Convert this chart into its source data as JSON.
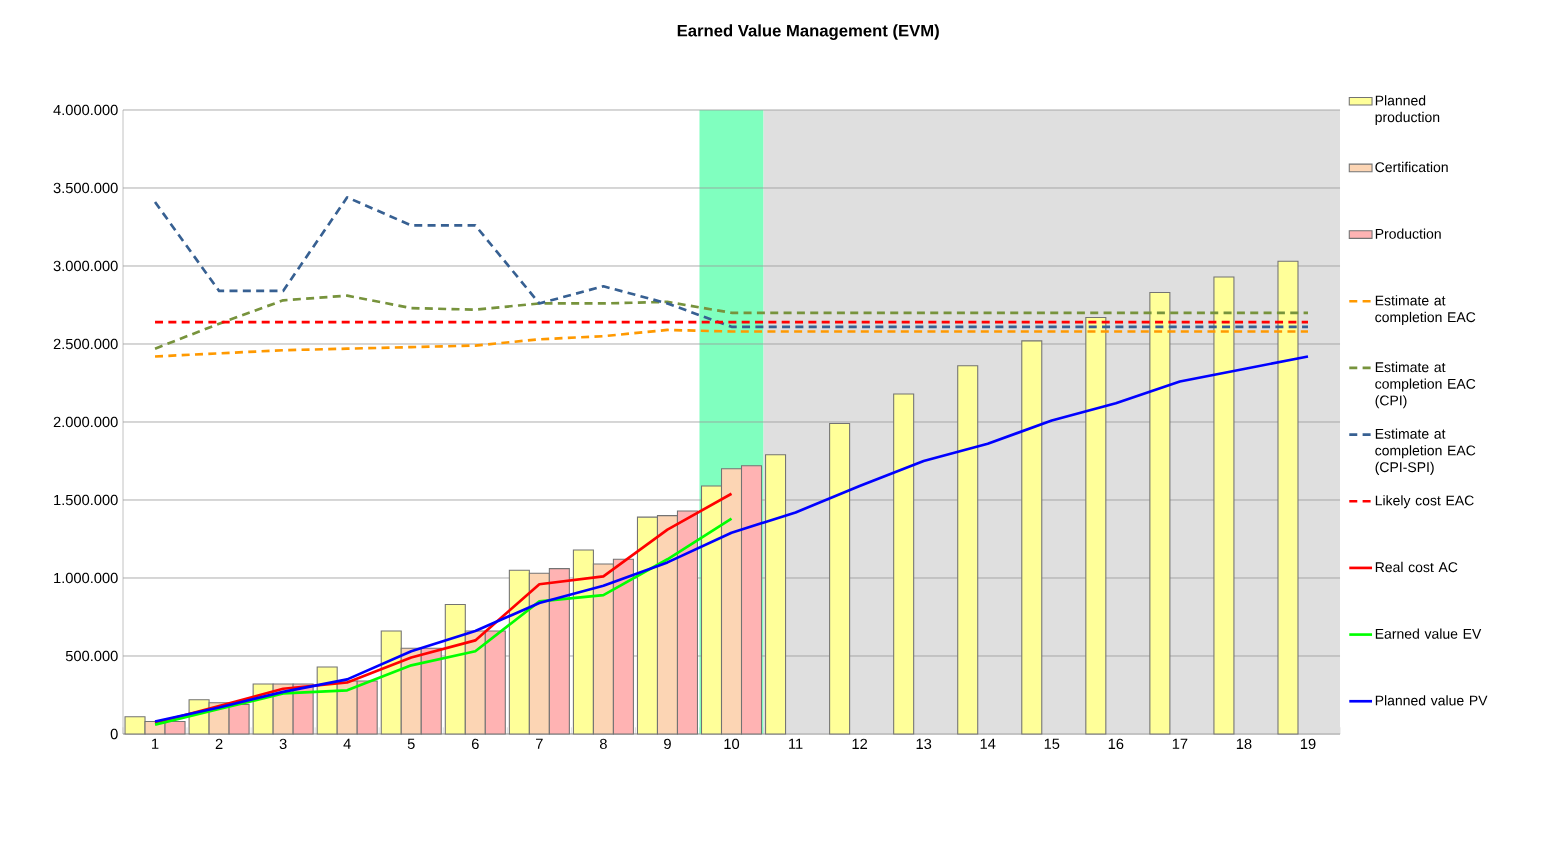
{
  "chart_data": {
    "type": "bar",
    "title": "Earned Value Management (EVM)",
    "categories": [
      "1",
      "2",
      "3",
      "4",
      "5",
      "6",
      "7",
      "8",
      "9",
      "10",
      "11",
      "12",
      "13",
      "14",
      "15",
      "16",
      "17",
      "18",
      "19"
    ],
    "series": [
      {
        "name": "Planned production",
        "color": "#ffff99",
        "values": [
          110000,
          220000,
          320000,
          430000,
          660000,
          830000,
          1050000,
          1180000,
          1390000,
          1590000,
          1790000,
          1990000,
          2180000,
          2360000,
          2520000,
          2670000,
          2830000,
          2930000,
          3030000
        ]
      },
      {
        "name": "Certification",
        "color": "#fcd5b4",
        "values": [
          80000,
          200000,
          320000,
          340000,
          550000,
          660000,
          1030000,
          1090000,
          1400000,
          1700000,
          null,
          null,
          null,
          null,
          null,
          null,
          null,
          null,
          null
        ]
      },
      {
        "name": "Production",
        "color": "#ffb3b3",
        "values": [
          80000,
          190000,
          320000,
          340000,
          550000,
          660000,
          1060000,
          1120000,
          1430000,
          1720000,
          null,
          null,
          null,
          null,
          null,
          null,
          null,
          null,
          null
        ]
      },
      {
        "type": "line",
        "name": "Estimate at completion EAC",
        "color": "#ff9900",
        "line_style": "dashed",
        "values": [
          2420000,
          2440000,
          2460000,
          2470000,
          2480000,
          2490000,
          2530000,
          2550000,
          2590000,
          2580000,
          2580000,
          2580000,
          2580000,
          2580000,
          2580000,
          2580000,
          2580000,
          2580000,
          2580000
        ]
      },
      {
        "type": "line",
        "name": "Estimate at completion EAC (CPI)",
        "color": "#77933c",
        "line_style": "dashed",
        "values": [
          2470000,
          2630000,
          2780000,
          2810000,
          2730000,
          2720000,
          2760000,
          2760000,
          2770000,
          2700000,
          2700000,
          2700000,
          2700000,
          2700000,
          2700000,
          2700000,
          2700000,
          2700000,
          2700000
        ]
      },
      {
        "type": "line",
        "name": "Estimate at completion EAC (CPI-SPI)",
        "color": "#376092",
        "line_style": "dashed",
        "values": [
          3410000,
          2840000,
          2840000,
          3440000,
          3260000,
          3260000,
          2760000,
          2870000,
          2760000,
          2610000,
          2610000,
          2610000,
          2610000,
          2610000,
          2610000,
          2610000,
          2610000,
          2610000,
          2610000
        ]
      },
      {
        "type": "line",
        "name": "Likely cost EAC",
        "color": "#ff0000",
        "line_style": "dashed",
        "values": [
          2640000,
          2640000,
          2640000,
          2640000,
          2640000,
          2640000,
          2640000,
          2640000,
          2640000,
          2640000,
          2640000,
          2640000,
          2640000,
          2640000,
          2640000,
          2640000,
          2640000,
          2640000,
          2640000
        ]
      },
      {
        "type": "line",
        "name": "Real cost AC",
        "color": "#ff0000",
        "line_style": "solid",
        "values": [
          70000,
          180000,
          290000,
          330000,
          490000,
          600000,
          960000,
          1010000,
          1310000,
          1540000,
          null,
          null,
          null,
          null,
          null,
          null,
          null,
          null,
          null
        ]
      },
      {
        "type": "line",
        "name": "Earned value EV",
        "color": "#00ff00",
        "line_style": "solid",
        "values": [
          60000,
          160000,
          260000,
          280000,
          440000,
          530000,
          850000,
          890000,
          1120000,
          1380000,
          null,
          null,
          null,
          null,
          null,
          null,
          null,
          null,
          null
        ]
      },
      {
        "type": "line",
        "name": "Planned value PV",
        "color": "#0000ff",
        "line_style": "solid",
        "values": [
          80000,
          170000,
          270000,
          350000,
          530000,
          660000,
          840000,
          950000,
          1100000,
          1290000,
          1420000,
          1590000,
          1750000,
          1860000,
          2010000,
          2120000,
          2260000,
          2340000,
          2420000
        ]
      }
    ],
    "bands": [
      {
        "axis": "x",
        "from": "10",
        "to": "10",
        "color": "#80ffbf"
      },
      {
        "axis": "x",
        "from": "11",
        "to": "19",
        "color": "#dfdfdf"
      }
    ],
    "ylim": [
      0,
      4000000
    ],
    "yticks": [
      0,
      {
        "value": 500000,
        "label": "500.000"
      },
      {
        "value": 1000000,
        "label": "1.000.000"
      },
      {
        "value": 1500000,
        "label": "1.500.000"
      },
      {
        "value": 2000000,
        "label": "2.000.000"
      },
      {
        "value": 2500000,
        "label": "2.500.000"
      },
      {
        "value": 3000000,
        "label": "3.000.000"
      },
      {
        "value": 3500000,
        "label": "3.500.000"
      },
      {
        "value": 4000000,
        "label": "4.000.000"
      }
    ],
    "grid": "y",
    "legend": "right"
  }
}
